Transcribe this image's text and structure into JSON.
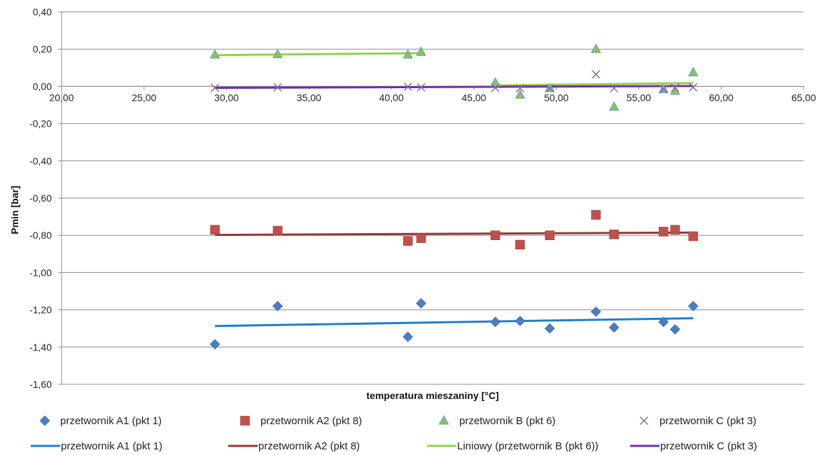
{
  "chart_data": {
    "type": "scatter",
    "title": "",
    "xlabel": "temperatura mieszaniny [°C]",
    "ylabel": "Pmin [bar]",
    "xlim": [
      20,
      65
    ],
    "ylim": [
      -1.6,
      0.4
    ],
    "x_ticks": [
      "20,00",
      "25,00",
      "30,00",
      "35,00",
      "40,00",
      "45,00",
      "50,00",
      "55,00",
      "60,00",
      "65,00"
    ],
    "y_ticks": [
      "0,40",
      "0,20",
      "0,00",
      "-0,20",
      "-0,40",
      "-0,60",
      "-0,80",
      "-1,00",
      "-1,20",
      "-1,40",
      "-1,60"
    ],
    "grid": "horizontal",
    "legend_position": "bottom",
    "series": [
      {
        "name": "przetwornik A1 (pkt 1)",
        "marker": "diamond",
        "color": "#4a7ebf",
        "x": [
          29.3,
          33.1,
          41.0,
          41.8,
          46.3,
          47.8,
          49.6,
          52.4,
          53.5,
          56.5,
          57.2,
          58.3
        ],
        "y": [
          -1.385,
          -1.18,
          -1.345,
          -1.165,
          -1.265,
          -1.26,
          -1.3,
          -1.21,
          -1.295,
          -1.265,
          -1.305,
          -1.18
        ]
      },
      {
        "name": "przetwornik A2 (pkt 8)",
        "marker": "square",
        "color": "#c0504d",
        "x": [
          29.3,
          33.1,
          41.0,
          41.8,
          46.3,
          47.8,
          49.6,
          52.4,
          53.5,
          56.5,
          57.2,
          58.3
        ],
        "y": [
          -0.77,
          -0.775,
          -0.83,
          -0.815,
          -0.8,
          -0.85,
          -0.8,
          -0.69,
          -0.795,
          -0.78,
          -0.77,
          -0.805
        ]
      },
      {
        "name": "przetwornik B (pkt 6)",
        "marker": "triangle",
        "color": "#9bbb59",
        "x": [
          29.3,
          33.1,
          41.0,
          41.8,
          46.3,
          47.8,
          49.6,
          52.4,
          53.5,
          56.5,
          57.2,
          58.3
        ],
        "y": [
          0.17,
          0.172,
          0.17,
          0.185,
          0.02,
          -0.045,
          -0.01,
          0.2,
          -0.11,
          -0.015,
          -0.025,
          0.075
        ]
      },
      {
        "name": "przetwornik C (pkt 3)",
        "marker": "x",
        "color": "#8064a2",
        "x": [
          29.3,
          33.1,
          41.0,
          41.8,
          46.3,
          47.8,
          49.6,
          52.4,
          53.5,
          56.5,
          57.2,
          58.3
        ],
        "y": [
          -0.008,
          -0.005,
          -0.002,
          -0.005,
          -0.008,
          -0.01,
          -0.01,
          0.065,
          -0.01,
          -0.015,
          -0.008,
          -0.005
        ]
      }
    ],
    "trendlines": [
      {
        "name": "przetwornik A1 (pkt 1)",
        "color": "#1f7fc8",
        "x": [
          29.3,
          58.3
        ],
        "y": [
          -1.287,
          -1.245
        ]
      },
      {
        "name": "przetwornik A2 (pkt 8)",
        "color": "#953735",
        "x": [
          29.3,
          58.3
        ],
        "y": [
          -0.798,
          -0.785
        ]
      },
      {
        "name": "Liniowy (przetwornik B (pkt 6))",
        "color": "#92d050",
        "x": [
          29.3,
          41.8
        ],
        "y": [
          0.168,
          0.178
        ]
      },
      {
        "name": "",
        "color": "#92d050",
        "x": [
          46.3,
          58.3
        ],
        "y": [
          0.005,
          0.018
        ]
      },
      {
        "name": "przetwornik C (pkt 3)",
        "color": "#7030a0",
        "x": [
          29.3,
          58.3
        ],
        "y": [
          -0.008,
          0.002
        ]
      }
    ]
  }
}
